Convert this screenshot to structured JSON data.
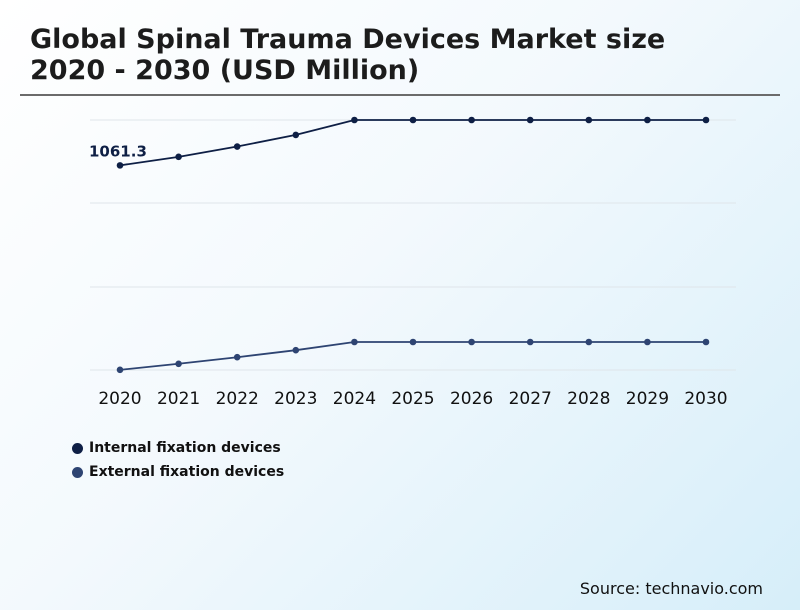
{
  "title_line1": "Global Spinal Trauma Devices Market size",
  "title_line2": "2020 - 2030 (USD Million)",
  "source": "Source: technavio.com",
  "colors": {
    "internal": "#0e1f45",
    "external": "#2e4472",
    "grid": "#dfe5ea"
  },
  "chart_data": [
    {
      "type": "line",
      "title": "Internal fixation devices",
      "x": [
        "2020",
        "2021",
        "2022",
        "2023",
        "2024",
        "2025",
        "2026",
        "2027",
        "2028",
        "2029",
        "2030"
      ],
      "values": [
        1061.3,
        1139,
        1233,
        1339,
        1475,
        1475,
        1475,
        1475,
        1475,
        1475,
        1475
      ],
      "ylim": [
        700,
        1475
      ],
      "annotations": [
        {
          "index": 0,
          "text": "1061.3"
        }
      ]
    },
    {
      "type": "line",
      "title": "External fixation devices",
      "x": [
        "2020",
        "2021",
        "2022",
        "2023",
        "2024",
        "2025",
        "2026",
        "2027",
        "2028",
        "2029",
        "2030"
      ],
      "values": [
        161,
        198,
        238,
        281,
        331,
        331,
        331,
        331,
        331,
        331,
        331
      ],
      "ylim": [
        160,
        331
      ]
    }
  ],
  "legend": [
    {
      "label": "Internal fixation devices",
      "color": "#0e1f45"
    },
    {
      "label": "External fixation devices",
      "color": "#2e4472"
    }
  ]
}
